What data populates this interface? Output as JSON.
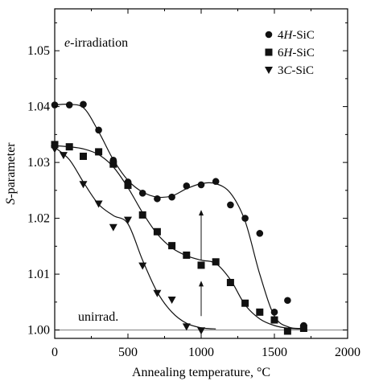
{
  "chart_data": {
    "type": "scatter",
    "xlabel": "Annealing temperature, °C",
    "ylabel_italic": "S",
    "ylabel_rest": "-parameter",
    "xlim": [
      0,
      2000
    ],
    "ylim": [
      0.9985,
      1.0575
    ],
    "xticks": [
      0,
      500,
      1000,
      1500,
      2000
    ],
    "xtick_labels": [
      "0",
      "500",
      "1000",
      "1500",
      "2000"
    ],
    "yticks": [
      1.0,
      1.01,
      1.02,
      1.03,
      1.04,
      1.05
    ],
    "ytick_labels": [
      "1.00",
      "1.01",
      "1.02",
      "1.03",
      "1.04",
      "1.05"
    ],
    "grid": false,
    "legend_position": "top-right",
    "annotations": {
      "irradiation_italic": "e",
      "irradiation_rest": "-irradiation",
      "unirradiated": "unirrad."
    },
    "reference_line": {
      "y": 1.0,
      "color": "#999999"
    },
    "arrows": [
      {
        "x": 1000,
        "y_from": 1.0125,
        "y_to": 1.0215
      },
      {
        "x": 1000,
        "y_from": 1.0025,
        "y_to": 1.0088
      }
    ],
    "series": [
      {
        "name_prefix": "4",
        "name_italic": "H",
        "name_suffix": "-SiC",
        "marker": "circle",
        "points": [
          [
            0,
            1.0403
          ],
          [
            100,
            1.0403
          ],
          [
            195,
            1.0404
          ],
          [
            300,
            1.0358
          ],
          [
            400,
            1.0304
          ],
          [
            500,
            1.0265
          ],
          [
            600,
            1.0245
          ],
          [
            700,
            1.0235
          ],
          [
            800,
            1.0238
          ],
          [
            900,
            1.0258
          ],
          [
            1000,
            1.026
          ],
          [
            1100,
            1.0266
          ],
          [
            1200,
            1.0224
          ],
          [
            1300,
            1.02
          ],
          [
            1400,
            1.0173
          ],
          [
            1500,
            1.0032
          ],
          [
            1590,
            1.0053
          ],
          [
            1700,
            1.0008
          ]
        ],
        "curve": [
          [
            0,
            1.0403
          ],
          [
            100,
            1.0404
          ],
          [
            200,
            1.0397
          ],
          [
            300,
            1.0355
          ],
          [
            400,
            1.0305
          ],
          [
            500,
            1.0268
          ],
          [
            600,
            1.0247
          ],
          [
            700,
            1.0238
          ],
          [
            800,
            1.024
          ],
          [
            900,
            1.0253
          ],
          [
            1000,
            1.0262
          ],
          [
            1100,
            1.0262
          ],
          [
            1200,
            1.0245
          ],
          [
            1300,
            1.0195
          ],
          [
            1400,
            1.01
          ],
          [
            1500,
            1.0025
          ],
          [
            1600,
            1.0005
          ],
          [
            1700,
            1.0003
          ]
        ]
      },
      {
        "name_prefix": "6",
        "name_italic": "H",
        "name_suffix": "-SiC",
        "marker": "square",
        "points": [
          [
            0,
            1.0332
          ],
          [
            100,
            1.0328
          ],
          [
            195,
            1.0311
          ],
          [
            300,
            1.0319
          ],
          [
            400,
            1.0297
          ],
          [
            500,
            1.0259
          ],
          [
            600,
            1.0206
          ],
          [
            700,
            1.0176
          ],
          [
            800,
            1.0151
          ],
          [
            900,
            1.0134
          ],
          [
            1000,
            1.0116
          ],
          [
            1100,
            1.0122
          ],
          [
            1200,
            1.0085
          ],
          [
            1300,
            1.0048
          ],
          [
            1400,
            1.0032
          ],
          [
            1500,
            1.0018
          ],
          [
            1590,
            0.9998
          ],
          [
            1700,
            1.0003
          ]
        ],
        "curve": [
          [
            0,
            1.033
          ],
          [
            100,
            1.0328
          ],
          [
            200,
            1.0324
          ],
          [
            300,
            1.0314
          ],
          [
            400,
            1.0292
          ],
          [
            500,
            1.0255
          ],
          [
            600,
            1.021
          ],
          [
            700,
            1.0172
          ],
          [
            800,
            1.0147
          ],
          [
            900,
            1.0133
          ],
          [
            1000,
            1.0125
          ],
          [
            1100,
            1.0119
          ],
          [
            1200,
            1.009
          ],
          [
            1300,
            1.0045
          ],
          [
            1400,
            1.002
          ],
          [
            1500,
            1.0008
          ],
          [
            1600,
            1.0003
          ],
          [
            1700,
            1.0002
          ]
        ]
      },
      {
        "name_prefix": "3",
        "name_italic": "C",
        "name_suffix": "-SiC",
        "marker": "triangle-down",
        "points": [
          [
            0,
            1.0324
          ],
          [
            60,
            1.0313
          ],
          [
            195,
            1.0261
          ],
          [
            300,
            1.0226
          ],
          [
            400,
            1.0184
          ],
          [
            500,
            1.0197
          ],
          [
            600,
            1.0115
          ],
          [
            700,
            1.0066
          ],
          [
            800,
            1.0054
          ],
          [
            900,
            1.0006
          ],
          [
            1000,
            0.9999
          ]
        ],
        "curve": [
          [
            0,
            1.0327
          ],
          [
            100,
            1.0305
          ],
          [
            200,
            1.0263
          ],
          [
            300,
            1.0225
          ],
          [
            400,
            1.0205
          ],
          [
            500,
            1.019
          ],
          [
            600,
            1.0125
          ],
          [
            700,
            1.0068
          ],
          [
            800,
            1.0032
          ],
          [
            900,
            1.0012
          ],
          [
            1000,
            1.0004
          ],
          [
            1100,
            1.0002
          ]
        ]
      }
    ]
  }
}
